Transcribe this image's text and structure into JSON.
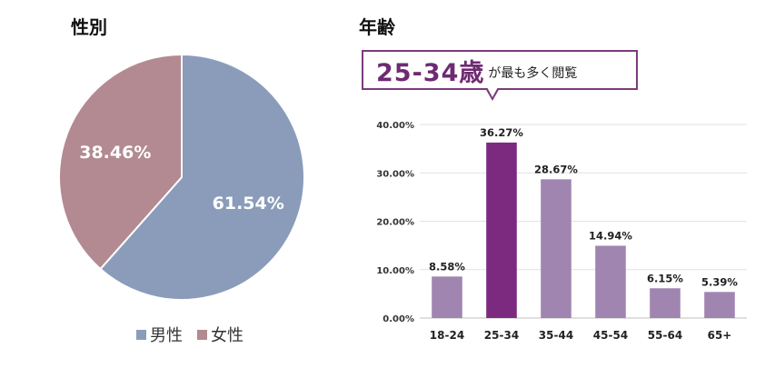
{
  "pie_panel": {
    "title": "性別",
    "legend": [
      {
        "label": "男性",
        "color": "#8a9cba"
      },
      {
        "label": "女性",
        "color": "#b38a91"
      }
    ]
  },
  "bar_panel": {
    "title": "年齢",
    "callout": {
      "highlight": "25-34歳",
      "text": "が最も多く閲覧"
    }
  },
  "chart_data": [
    {
      "type": "pie",
      "title": "性別",
      "slices": [
        {
          "label": "男性",
          "value": 61.54,
          "value_label": "61.54%",
          "color": "#8a9cba"
        },
        {
          "label": "女性",
          "value": 38.46,
          "value_label": "38.46%",
          "color": "#b38a91"
        }
      ],
      "legend_position": "bottom"
    },
    {
      "type": "bar",
      "title": "年齢",
      "categories": [
        "18-24",
        "25-34",
        "35-44",
        "45-54",
        "55-64",
        "65+"
      ],
      "values": [
        8.58,
        36.27,
        28.67,
        14.94,
        6.15,
        5.39
      ],
      "value_labels": [
        "8.58%",
        "36.27%",
        "28.67%",
        "14.94%",
        "6.15%",
        "5.39%"
      ],
      "colors": [
        "#a185b1",
        "#7c2a80",
        "#a185b1",
        "#a185b1",
        "#a185b1",
        "#a185b1"
      ],
      "ylim": [
        0,
        40
      ],
      "y_ticks": [
        "0.00%",
        "10.00%",
        "20.00%",
        "30.00%",
        "40.00%"
      ],
      "grid": true,
      "xlabel": "",
      "ylabel": ""
    }
  ]
}
